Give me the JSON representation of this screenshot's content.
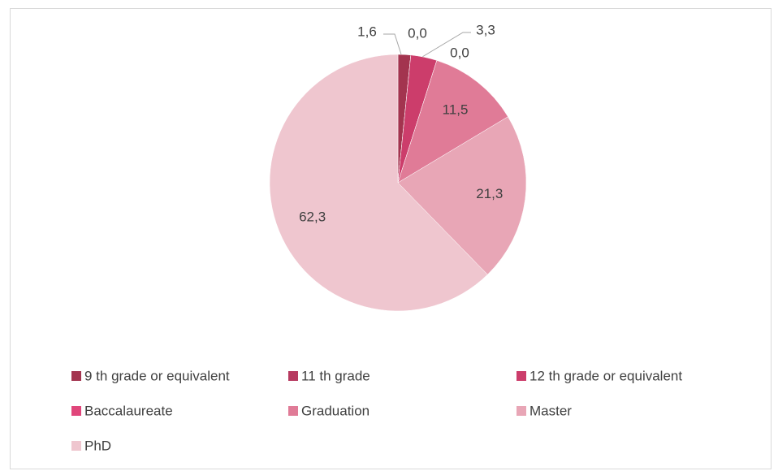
{
  "chart_data": {
    "type": "pie",
    "categories": [
      "9 th grade or equivalent",
      "11 th grade",
      "12 th grade or equivalent",
      "Baccalaureate",
      "Graduation",
      "Master",
      "PhD"
    ],
    "values": [
      1.6,
      0.0,
      3.3,
      0.0,
      11.5,
      21.3,
      62.3
    ],
    "value_labels": [
      "1,6",
      "0,0",
      "3,3",
      "0,0",
      "11,5",
      "21,3",
      "62,3"
    ],
    "colors": [
      "#a3344f",
      "#b73a60",
      "#cc3d6b",
      "#e0467b",
      "#e07b97",
      "#e8a6b6",
      "#efc6cf"
    ],
    "legend": "bottom"
  }
}
